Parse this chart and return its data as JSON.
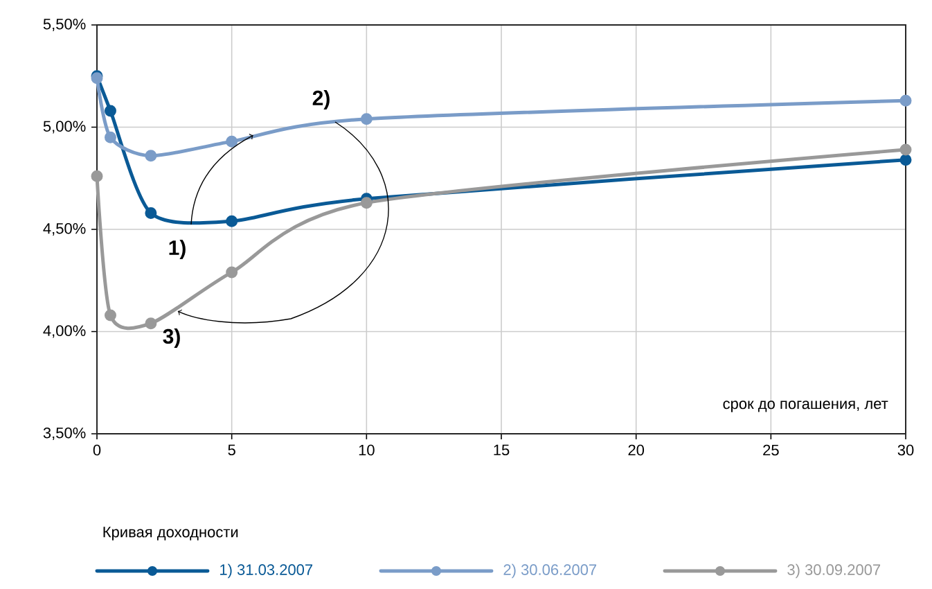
{
  "chart_data": {
    "type": "line",
    "xlabel": "срок до погашения, лет",
    "legend_title": "Кривая доходности",
    "xlim": [
      0,
      30
    ],
    "xticks": [
      0,
      5,
      10,
      15,
      20,
      25,
      30
    ],
    "ylim": [
      3.5,
      5.5
    ],
    "yticks": [
      {
        "value": 3.5,
        "label": "3,50%"
      },
      {
        "value": 4.0,
        "label": "4,00%"
      },
      {
        "value": 4.5,
        "label": "4,50%"
      },
      {
        "value": 5.0,
        "label": "5,00%"
      },
      {
        "value": 5.5,
        "label": "5,50%"
      }
    ],
    "grid": true,
    "legend": "bottom",
    "marker": "circle",
    "line_style": "solid",
    "x": [
      0,
      0.5,
      2,
      5,
      10,
      30
    ],
    "series": [
      {
        "name": "1) 31.03.2007",
        "color": "#0a5a96",
        "values": [
          5.25,
          5.08,
          4.58,
          4.54,
          4.65,
          4.84
        ]
      },
      {
        "name": "2) 30.06.2007",
        "color": "#7a9cc8",
        "values": [
          5.24,
          4.95,
          4.86,
          4.93,
          5.04,
          5.13
        ]
      },
      {
        "name": "3) 30.09.2007",
        "color": "#999999",
        "values": [
          4.76,
          4.08,
          4.04,
          4.29,
          4.63,
          4.89
        ]
      }
    ],
    "annotations": [
      {
        "text": "1)",
        "x": 5.8,
        "y": 4.96
      },
      {
        "text": "2)",
        "x": 3,
        "y": 4.1
      },
      "3)"
    ]
  }
}
